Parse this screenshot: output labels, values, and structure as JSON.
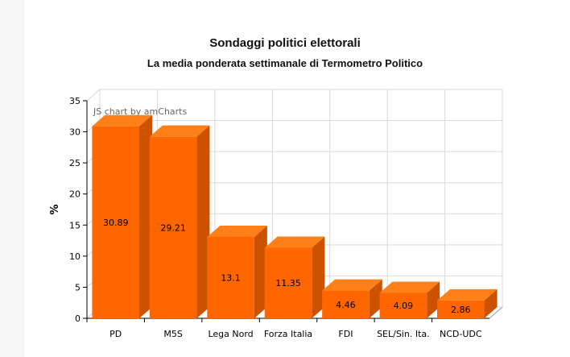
{
  "chart_data": {
    "type": "bar",
    "title": "Sondaggi politici elettorali",
    "subtitle": "La media ponderata settimanale di Termometro Politico",
    "xlabel": "",
    "ylabel": "%",
    "categories": [
      "PD",
      "M5S",
      "Lega Nord",
      "Forza Italia",
      "FDI",
      "SEL/Sin. Ita.",
      "NCD-UDC"
    ],
    "values": [
      30.89,
      29.21,
      13.1,
      11.35,
      4.46,
      4.09,
      2.86
    ],
    "value_labels": [
      "30.89",
      "29.21",
      "13.1",
      "11.35",
      "4.46",
      "4.09",
      "2.86"
    ],
    "ylim": [
      0,
      35
    ],
    "yticks": [
      0,
      5,
      10,
      15,
      20,
      25,
      30,
      35
    ],
    "grid": true,
    "style": "3d-column",
    "colors": {
      "bar_front": "#ff6600",
      "bar_top": "#ff7f19",
      "bar_side": "#cc5200",
      "grid": "#d9d9d9"
    },
    "credit": "JS chart by amCharts"
  }
}
